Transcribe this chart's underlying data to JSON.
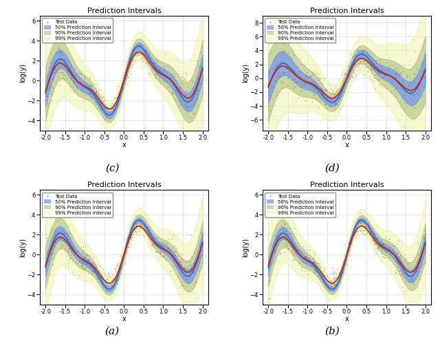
{
  "title": "Prediction Intervals",
  "xlabel": "x",
  "ylabel": "log(y)",
  "xlim": [
    -2.15,
    2.15
  ],
  "subplots": [
    {
      "label": "(a)",
      "ylim": [
        -5.0,
        6.5
      ],
      "yticks": [
        -4,
        -2,
        0,
        2,
        4,
        6
      ],
      "noise_scale": 0.45,
      "band50_scale": 0.3,
      "band90_scale": 0.65,
      "band99_scale": 1.3,
      "n_points": 500,
      "seed": 42
    },
    {
      "label": "(b)",
      "ylim": [
        -7.5,
        9.0
      ],
      "yticks": [
        -6,
        -4,
        -2,
        0,
        2,
        4,
        6,
        8
      ],
      "noise_scale": 0.85,
      "band50_scale": 0.55,
      "band90_scale": 1.15,
      "band99_scale": 2.4,
      "n_points": 500,
      "seed": 123
    },
    {
      "label": "(c)",
      "ylim": [
        -5.0,
        6.5
      ],
      "yticks": [
        -4,
        -2,
        0,
        2,
        4,
        6
      ],
      "noise_scale": 0.45,
      "band50_scale": 0.22,
      "band90_scale": 0.5,
      "band99_scale": 1.1,
      "n_points": 500,
      "seed": 77
    },
    {
      "label": "(d)",
      "ylim": [
        -5.0,
        6.5
      ],
      "yticks": [
        -4,
        -2,
        0,
        2,
        4,
        6
      ],
      "noise_scale": 0.45,
      "band50_scale": 0.2,
      "band90_scale": 0.45,
      "band99_scale": 1.0,
      "n_points": 500,
      "seed": 99
    }
  ],
  "colors": {
    "scatter": "#4a4a28",
    "band50": "#7799ee",
    "band90": "#aabb77",
    "band99": "#eeee99",
    "mean_blue": "#3366cc",
    "mean_red": "#cc2200"
  },
  "legend_entries": [
    "Test Data",
    "50% Prediction Interval",
    "90% Prediction Interval",
    "99% Prediction Interval"
  ],
  "scatter_size": 3,
  "scatter_alpha": 0.55,
  "band50_alpha": 0.75,
  "band90_alpha": 0.55,
  "band99_alpha": 0.45
}
